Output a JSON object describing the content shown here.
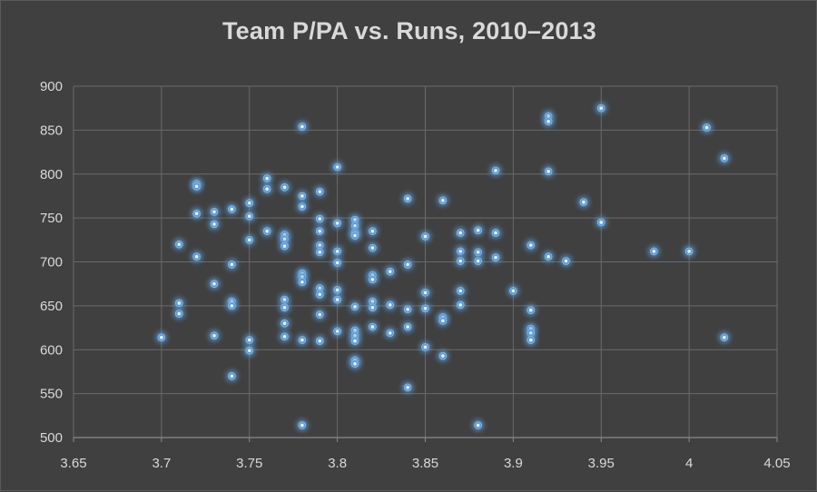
{
  "chart_data": {
    "type": "scatter",
    "title": "Team P/PA vs. Runs, 2010–2013",
    "xlabel": "",
    "ylabel": "",
    "xlim": [
      3.65,
      4.05
    ],
    "ylim": [
      500,
      900
    ],
    "x_ticks": [
      "3.65",
      "3.7",
      "3.75",
      "3.8",
      "3.85",
      "3.9",
      "3.95",
      "4",
      "4.05"
    ],
    "y_ticks": [
      "500",
      "550",
      "600",
      "650",
      "700",
      "750",
      "800",
      "850",
      "900"
    ],
    "grid": true,
    "legend": "none",
    "marker_color": "#5b9bd5",
    "series": [
      {
        "points": [
          [
            3.7,
            614
          ],
          [
            3.71,
            720
          ],
          [
            3.71,
            653
          ],
          [
            3.71,
            641
          ],
          [
            3.72,
            789
          ],
          [
            3.72,
            786
          ],
          [
            3.72,
            755
          ],
          [
            3.72,
            706
          ],
          [
            3.73,
            757
          ],
          [
            3.73,
            743
          ],
          [
            3.73,
            675
          ],
          [
            3.73,
            616
          ],
          [
            3.74,
            760
          ],
          [
            3.74,
            697
          ],
          [
            3.74,
            655
          ],
          [
            3.74,
            650
          ],
          [
            3.74,
            570
          ],
          [
            3.75,
            767
          ],
          [
            3.75,
            752
          ],
          [
            3.75,
            725
          ],
          [
            3.75,
            611
          ],
          [
            3.75,
            599
          ],
          [
            3.76,
            795
          ],
          [
            3.76,
            783
          ],
          [
            3.76,
            735
          ],
          [
            3.77,
            785
          ],
          [
            3.77,
            731
          ],
          [
            3.77,
            726
          ],
          [
            3.77,
            718
          ],
          [
            3.77,
            657
          ],
          [
            3.77,
            648
          ],
          [
            3.77,
            630
          ],
          [
            3.77,
            615
          ],
          [
            3.78,
            854
          ],
          [
            3.78,
            775
          ],
          [
            3.78,
            763
          ],
          [
            3.78,
            687
          ],
          [
            3.78,
            683
          ],
          [
            3.78,
            677
          ],
          [
            3.78,
            611
          ],
          [
            3.78,
            514
          ],
          [
            3.79,
            780
          ],
          [
            3.79,
            749
          ],
          [
            3.79,
            735
          ],
          [
            3.79,
            719
          ],
          [
            3.79,
            711
          ],
          [
            3.79,
            670
          ],
          [
            3.79,
            663
          ],
          [
            3.79,
            640
          ],
          [
            3.79,
            610
          ],
          [
            3.8,
            808
          ],
          [
            3.8,
            744
          ],
          [
            3.8,
            712
          ],
          [
            3.8,
            699
          ],
          [
            3.8,
            668
          ],
          [
            3.8,
            657
          ],
          [
            3.8,
            621
          ],
          [
            3.81,
            748
          ],
          [
            3.81,
            741
          ],
          [
            3.81,
            733
          ],
          [
            3.81,
            730
          ],
          [
            3.81,
            649
          ],
          [
            3.81,
            622
          ],
          [
            3.81,
            616
          ],
          [
            3.81,
            610
          ],
          [
            3.81,
            588
          ],
          [
            3.81,
            584
          ],
          [
            3.82,
            735
          ],
          [
            3.82,
            716
          ],
          [
            3.82,
            685
          ],
          [
            3.82,
            680
          ],
          [
            3.82,
            655
          ],
          [
            3.82,
            648
          ],
          [
            3.82,
            626
          ],
          [
            3.83,
            689
          ],
          [
            3.83,
            651
          ],
          [
            3.83,
            619
          ],
          [
            3.84,
            772
          ],
          [
            3.84,
            697
          ],
          [
            3.84,
            646
          ],
          [
            3.84,
            626
          ],
          [
            3.84,
            557
          ],
          [
            3.85,
            729
          ],
          [
            3.85,
            665
          ],
          [
            3.85,
            647
          ],
          [
            3.85,
            603
          ],
          [
            3.86,
            770
          ],
          [
            3.86,
            637
          ],
          [
            3.86,
            633
          ],
          [
            3.86,
            593
          ],
          [
            3.87,
            733
          ],
          [
            3.87,
            712
          ],
          [
            3.87,
            701
          ],
          [
            3.87,
            667
          ],
          [
            3.87,
            651
          ],
          [
            3.88,
            736
          ],
          [
            3.88,
            711
          ],
          [
            3.88,
            701
          ],
          [
            3.88,
            514
          ],
          [
            3.89,
            804
          ],
          [
            3.89,
            733
          ],
          [
            3.89,
            705
          ],
          [
            3.9,
            667
          ],
          [
            3.91,
            719
          ],
          [
            3.91,
            645
          ],
          [
            3.91,
            624
          ],
          [
            3.91,
            619
          ],
          [
            3.91,
            611
          ],
          [
            3.92,
            866
          ],
          [
            3.92,
            860
          ],
          [
            3.92,
            803
          ],
          [
            3.92,
            706
          ],
          [
            3.93,
            701
          ],
          [
            3.94,
            768
          ],
          [
            3.95,
            875
          ],
          [
            3.95,
            745
          ],
          [
            3.98,
            712
          ],
          [
            4.0,
            712
          ],
          [
            4.01,
            853
          ],
          [
            4.02,
            818
          ],
          [
            4.02,
            614
          ]
        ]
      }
    ]
  }
}
